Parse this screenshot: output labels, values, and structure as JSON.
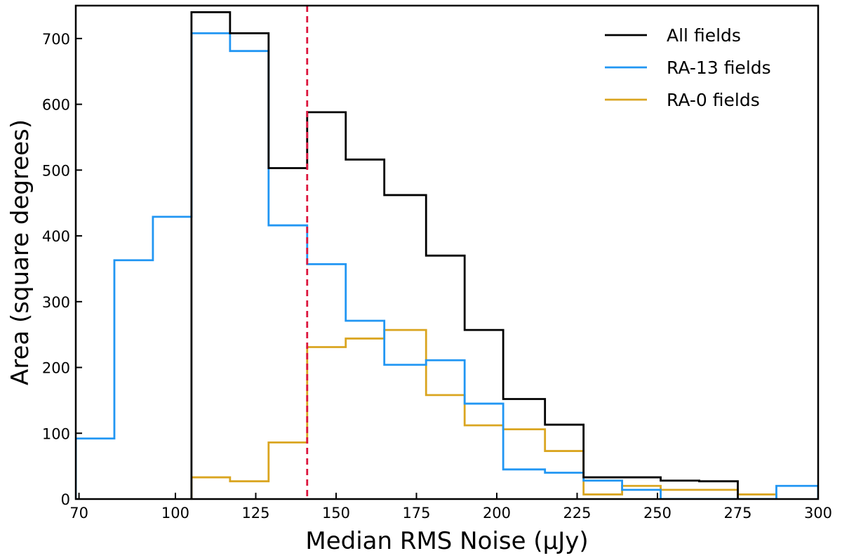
{
  "chart_data": {
    "type": "histogram-step",
    "xlabel": "Median RMS Noise (μJy)",
    "ylabel": "Area (square degrees)",
    "xlim": [
      69,
      300
    ],
    "ylim": [
      0,
      750
    ],
    "x_ticks": [
      70,
      100,
      125,
      150,
      175,
      200,
      225,
      250,
      275,
      300
    ],
    "y_ticks": [
      0,
      100,
      200,
      300,
      400,
      500,
      600,
      700
    ],
    "legend_position": "top-right",
    "series": [
      {
        "name": "All fields",
        "color": "#000000",
        "edges": [
          105,
          117,
          129,
          141,
          153,
          165,
          178,
          190,
          202,
          215,
          227,
          239,
          251,
          263,
          275
        ],
        "values": [
          740,
          708,
          503,
          588,
          516,
          462,
          370,
          257,
          152,
          113,
          33,
          33,
          28,
          27
        ]
      },
      {
        "name": "RA-13 fields",
        "color": "#2196f3",
        "edges": [
          69,
          81,
          93,
          105,
          117,
          129,
          141,
          153,
          165,
          178,
          190,
          202,
          215,
          227,
          239,
          251,
          263,
          275,
          287,
          300
        ],
        "values": [
          92,
          363,
          429,
          708,
          681,
          416,
          357,
          271,
          204,
          211,
          145,
          45,
          40,
          28,
          14,
          0,
          0,
          0,
          20
        ]
      },
      {
        "name": "RA-0 fields",
        "color": "#daa520",
        "edges": [
          105,
          117,
          129,
          141,
          153,
          165,
          178,
          190,
          202,
          215,
          227,
          239,
          251,
          263,
          275,
          287
        ],
        "values": [
          33,
          27,
          86,
          231,
          244,
          257,
          158,
          112,
          106,
          73,
          7,
          20,
          14,
          14,
          7
        ]
      }
    ],
    "vline": {
      "x": 141,
      "color": "#dc143c",
      "style": "dashed"
    }
  }
}
